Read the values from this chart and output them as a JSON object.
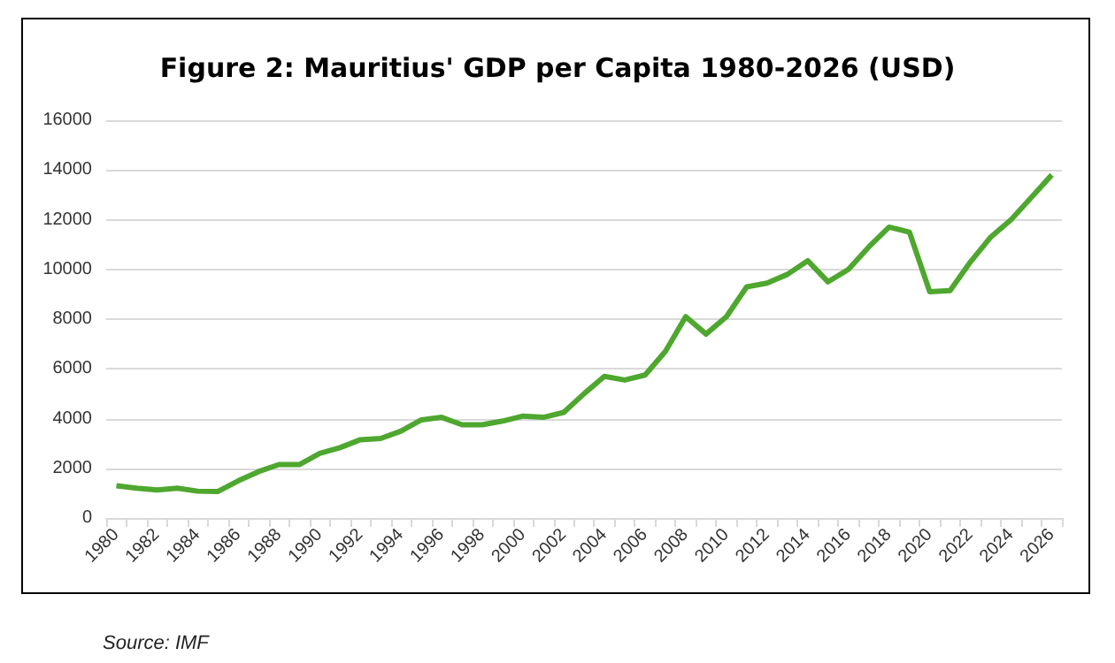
{
  "chart_data": {
    "type": "line",
    "title": "Figure 2: Mauritius' GDP per Capita 1980-2026 (USD)",
    "categories": [
      "1980",
      null,
      "1982",
      null,
      "1984",
      null,
      "1986",
      null,
      "1988",
      null,
      "1990",
      null,
      "1992",
      null,
      "1994",
      null,
      "1996",
      null,
      "1998",
      null,
      "2000",
      null,
      "2002",
      null,
      "2004",
      null,
      "2006",
      null,
      "2008",
      null,
      "2010",
      null,
      "2012",
      null,
      "2014",
      null,
      "2016",
      null,
      "2018",
      null,
      "2020",
      null,
      "2022",
      null,
      "2024",
      null,
      "2026"
    ],
    "series": [
      {
        "color": "#4ea72e",
        "values": [
          1300,
          1200,
          1130,
          1200,
          1080,
          1070,
          1500,
          1870,
          2150,
          2150,
          2600,
          2830,
          3150,
          3200,
          3500,
          3950,
          4050,
          3750,
          3750,
          3900,
          4100,
          4050,
          4250,
          5000,
          5700,
          5550,
          5750,
          6700,
          8100,
          7400,
          8100,
          9300,
          9450,
          9800,
          10350,
          9500,
          10000,
          10900,
          11700,
          11500,
          9100,
          9150,
          10300,
          11300,
          12000,
          12900,
          13800
        ]
      }
    ],
    "ylim": [
      0,
      16000
    ],
    "yticks": [
      0,
      2000,
      4000,
      6000,
      8000,
      10000,
      12000,
      14000,
      16000
    ],
    "grid": "y",
    "marker": "none",
    "line_style": "solid",
    "annotations": [
      "Source: IMF"
    ]
  }
}
